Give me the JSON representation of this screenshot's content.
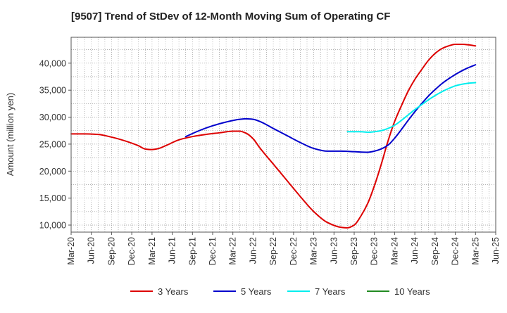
{
  "chart_data": {
    "type": "line",
    "title": "[9507]  Trend of StDev of 12-Month Moving Sum of Operating CF",
    "xlabel": "",
    "ylabel": "Amount (million yen)",
    "ylim": [
      8700,
      44800
    ],
    "y_ticks": [
      10000,
      15000,
      20000,
      25000,
      30000,
      35000,
      40000
    ],
    "y_tick_labels": [
      "10,000",
      "15,000",
      "20,000",
      "25,000",
      "30,000",
      "35,000",
      "40,000"
    ],
    "x_range": [
      0,
      63
    ],
    "x_ticks": [
      0,
      3,
      6,
      9,
      12,
      15,
      18,
      21,
      24,
      27,
      30,
      33,
      36,
      39,
      42,
      45,
      48,
      51,
      54,
      57,
      60,
      63
    ],
    "x_tick_labels": [
      "Mar-20",
      "Jun-20",
      "Sep-20",
      "Dec-20",
      "Mar-21",
      "Jun-21",
      "Sep-21",
      "Dec-21",
      "Mar-22",
      "Jun-22",
      "Sep-22",
      "Dec-22",
      "Mar-23",
      "Jun-23",
      "Sep-23",
      "Dec-23",
      "Mar-24",
      "Jun-24",
      "Sep-24",
      "Dec-24",
      "Mar-25",
      "Jun-25"
    ],
    "x_note": "x values are months elapsed since Mar-20",
    "grid": true,
    "legend_position": "bottom",
    "series": [
      {
        "name": "3 Years",
        "color": "#dd0000",
        "x": [
          0,
          2,
          4,
          6,
          8,
          10,
          11,
          12,
          13,
          14,
          16,
          18,
          20,
          22,
          24,
          25,
          26,
          27,
          28,
          30,
          32,
          34,
          36,
          38,
          40,
          41,
          42,
          43,
          44,
          45,
          46,
          47,
          48,
          49,
          50,
          51,
          52,
          53,
          54,
          55,
          56,
          57,
          58,
          59,
          60
        ],
        "values": [
          26900,
          26900,
          26800,
          26300,
          25600,
          24700,
          24100,
          24000,
          24200,
          24700,
          25800,
          26400,
          26800,
          27100,
          27400,
          27400,
          27000,
          26000,
          24300,
          21300,
          18300,
          15300,
          12500,
          10500,
          9600,
          9500,
          10000,
          11700,
          14000,
          17300,
          21200,
          25500,
          29200,
          32100,
          34800,
          37000,
          38800,
          40500,
          41800,
          42700,
          43200,
          43500,
          43500,
          43400,
          43200
        ]
      },
      {
        "name": "5 Years",
        "color": "#0000cc",
        "x": [
          17,
          19,
          21,
          23,
          25,
          26,
          27,
          28,
          30,
          32,
          34,
          36,
          38,
          40,
          42,
          44,
          45,
          46,
          47,
          48,
          49,
          50,
          51,
          52,
          53,
          54,
          55,
          56,
          57,
          58,
          59,
          60
        ],
        "values": [
          26400,
          27500,
          28400,
          29100,
          29600,
          29700,
          29600,
          29200,
          27900,
          26600,
          25300,
          24200,
          23700,
          23700,
          23600,
          23500,
          23700,
          24100,
          24800,
          26100,
          27700,
          29400,
          31000,
          32500,
          33900,
          35100,
          36200,
          37100,
          37900,
          38600,
          39200,
          39700
        ]
      },
      {
        "name": "7 Years",
        "color": "#00eeee",
        "x": [
          41,
          42,
          43,
          44,
          45,
          46,
          47,
          48,
          49,
          50,
          51,
          52,
          53,
          54,
          55,
          56,
          57,
          58,
          59,
          60
        ],
        "values": [
          27300,
          27300,
          27300,
          27200,
          27300,
          27500,
          27900,
          28500,
          29400,
          30400,
          31400,
          32300,
          33200,
          34000,
          34700,
          35300,
          35800,
          36100,
          36300,
          36400
        ]
      },
      {
        "name": "10 Years",
        "color": "#228b22",
        "x": [],
        "values": []
      }
    ]
  }
}
